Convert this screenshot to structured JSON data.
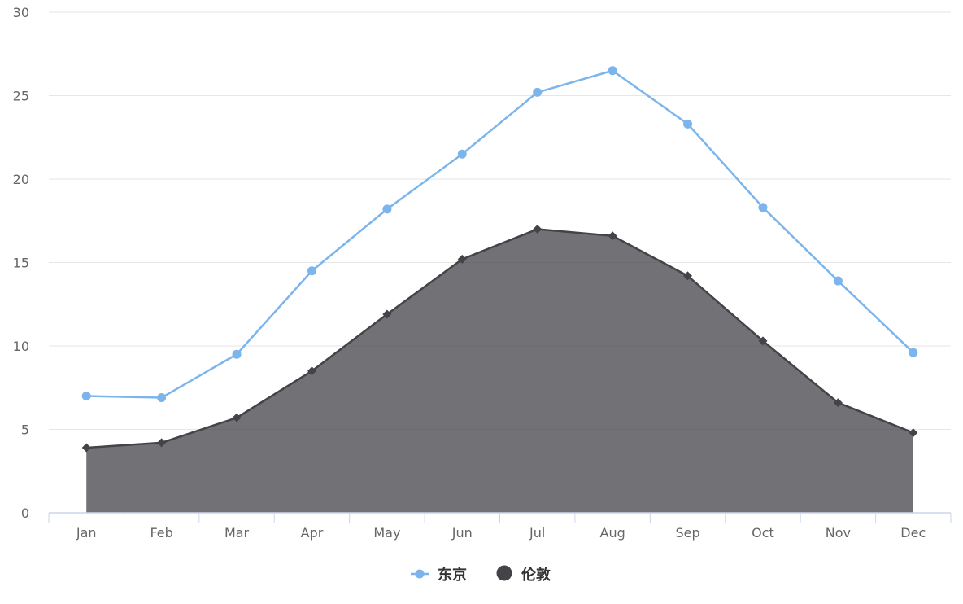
{
  "chart_data": {
    "type": "line",
    "title": "",
    "xlabel": "",
    "ylabel": "",
    "categories": [
      "Jan",
      "Feb",
      "Mar",
      "Apr",
      "May",
      "Jun",
      "Jul",
      "Aug",
      "Sep",
      "Oct",
      "Nov",
      "Dec"
    ],
    "ylim": [
      0,
      30
    ],
    "y_ticks": [
      "0",
      "5",
      "10",
      "15",
      "20",
      "25",
      "30"
    ],
    "grid": true,
    "legend_position": "bottom-center",
    "series": [
      {
        "name": "东京",
        "chart_type": "line",
        "marker": "circle",
        "color": "#7cb5ec",
        "values": [
          7.0,
          6.9,
          9.5,
          14.5,
          18.2,
          21.5,
          25.2,
          26.5,
          23.3,
          18.3,
          13.9,
          9.6
        ]
      },
      {
        "name": "伦敦",
        "chart_type": "area",
        "marker": "diamond",
        "color": "#434348",
        "fill_color": "#434348",
        "values": [
          3.9,
          4.2,
          5.7,
          8.5,
          11.9,
          15.2,
          17.0,
          16.6,
          14.2,
          10.3,
          6.6,
          4.8
        ]
      }
    ]
  }
}
